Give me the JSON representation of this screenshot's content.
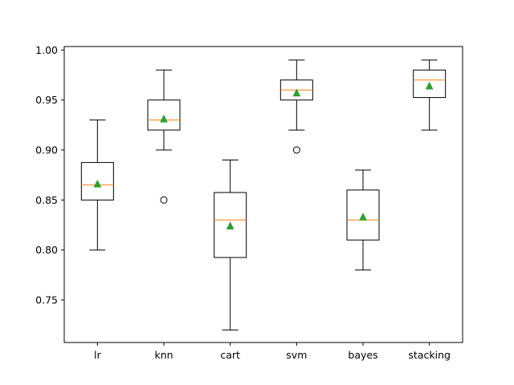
{
  "chart_data": {
    "type": "box",
    "categories": [
      "lr",
      "knn",
      "cart",
      "svm",
      "bayes",
      "stacking"
    ],
    "series": [
      {
        "whisker_low": 0.8,
        "q1": 0.85,
        "median": 0.865,
        "q3": 0.8875,
        "whisker_high": 0.93,
        "mean": 0.866,
        "outliers": []
      },
      {
        "whisker_low": 0.9,
        "q1": 0.92,
        "median": 0.93,
        "q3": 0.95,
        "whisker_high": 0.98,
        "mean": 0.931,
        "outliers": [
          0.85
        ]
      },
      {
        "whisker_low": 0.72,
        "q1": 0.7925,
        "median": 0.83,
        "q3": 0.8575,
        "whisker_high": 0.89,
        "mean": 0.824,
        "outliers": []
      },
      {
        "whisker_low": 0.92,
        "q1": 0.95,
        "median": 0.96,
        "q3": 0.97,
        "whisker_high": 0.99,
        "mean": 0.957,
        "outliers": [
          0.9
        ]
      },
      {
        "whisker_low": 0.78,
        "q1": 0.81,
        "median": 0.83,
        "q3": 0.86,
        "whisker_high": 0.88,
        "mean": 0.833,
        "outliers": []
      },
      {
        "whisker_low": 0.92,
        "q1": 0.9525,
        "median": 0.97,
        "q3": 0.98,
        "whisker_high": 0.99,
        "mean": 0.964,
        "outliers": []
      }
    ],
    "yticks": [
      "0.75",
      "0.80",
      "0.85",
      "0.90",
      "0.95",
      "1.00"
    ],
    "ylim": [
      0.7075,
      1.0035
    ],
    "grid": false,
    "legend": "none",
    "colors": {
      "box": "#000000",
      "median": "#ff7f0e",
      "mean": "#2ca02c",
      "outlier": "#000000"
    }
  }
}
